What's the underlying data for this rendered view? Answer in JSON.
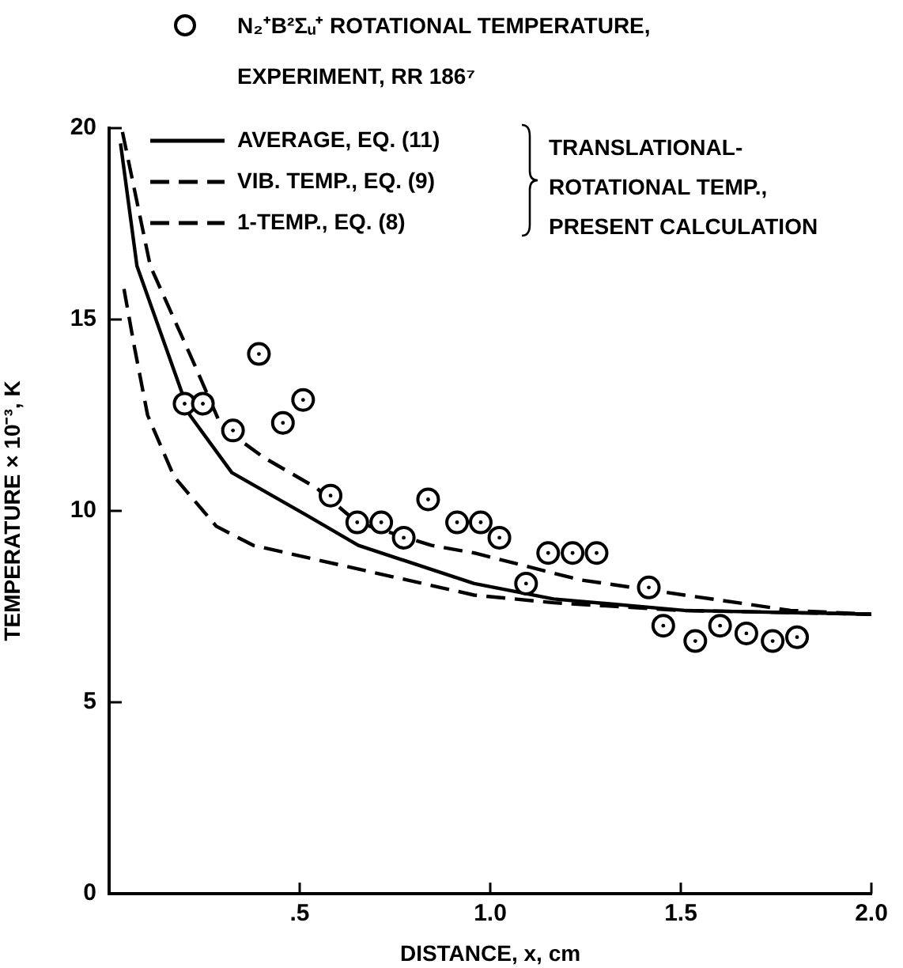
{
  "chart_data": {
    "type": "line",
    "xlabel": "DISTANCE, x, cm",
    "ylabel": "TEMPERATURE × 10⁻³, K",
    "annotations": [
      "TRANSLATIONAL-ROTATIONAL TEMP., PRESENT CALCULATION"
    ],
    "xlim": [
      0,
      2
    ],
    "ylim": [
      0,
      20
    ],
    "xticks": [
      {
        "value": 0.5,
        "label": ".5"
      },
      {
        "value": 1,
        "label": "1.0"
      },
      {
        "value": 1.5,
        "label": "1.5"
      },
      {
        "value": 2,
        "label": "2.0"
      }
    ],
    "yticks": [
      0,
      5,
      10,
      15,
      20
    ],
    "grid": false,
    "legend": "top",
    "series": [
      {
        "name": "N₂⁺B²Σᵤ⁺ ROTATIONAL TEMPERATURE, EXPERIMENT, RR 186⁷",
        "type": "scatter",
        "marker": "circle",
        "color": "#000000",
        "x": [
          0.198,
          0.246,
          0.325,
          0.393,
          0.456,
          0.509,
          0.581,
          0.651,
          0.714,
          0.773,
          0.837,
          0.913,
          0.975,
          1.024,
          1.094,
          1.152,
          1.216,
          1.279,
          1.416,
          1.454,
          1.538,
          1.603,
          1.672,
          1.741,
          1.805
        ],
        "values": [
          12.8,
          12.8,
          12.1,
          14.1,
          12.3,
          12.9,
          10.4,
          9.7,
          9.7,
          9.3,
          10.3,
          9.7,
          9.7,
          9.3,
          8.1,
          8.9,
          8.9,
          8.9,
          8.0,
          7.0,
          6.6,
          7.0,
          6.8,
          6.6,
          6.7
        ]
      },
      {
        "name": "AVERAGE, EQ. (11)",
        "type": "line",
        "line_style": "solid",
        "color": "#000000",
        "x": [
          0.03,
          0.073,
          0.212,
          0.322,
          0.516,
          0.654,
          0.958,
          1.166,
          1.51,
          2.0
        ],
        "values": [
          19.6,
          16.4,
          12.5,
          11.0,
          9.9,
          9.1,
          8.1,
          7.7,
          7.4,
          7.3
        ]
      },
      {
        "name": "VIB. TEMP., EQ. (9)",
        "type": "line",
        "line_style": "dashed",
        "color": "#000000",
        "x": [
          0.035,
          0.108,
          0.225,
          0.295,
          0.405,
          0.544,
          0.651,
          0.846,
          0.958,
          1.235,
          1.51,
          1.788,
          2.0
        ],
        "values": [
          19.9,
          16.4,
          13.8,
          12.2,
          11.4,
          10.6,
          9.7,
          9.1,
          8.9,
          8.2,
          7.8,
          7.4,
          7.3
        ]
      },
      {
        "name": "1-TEMP., EQ. (8)",
        "type": "line",
        "line_style": "dashed",
        "color": "#000000",
        "x": [
          0.039,
          0.066,
          0.101,
          0.17,
          0.281,
          0.378,
          0.6,
          0.958,
          1.166,
          1.5,
          2.0
        ],
        "values": [
          15.8,
          14.3,
          12.5,
          10.9,
          9.6,
          9.1,
          8.6,
          7.8,
          7.6,
          7.4,
          7.3
        ]
      }
    ]
  }
}
